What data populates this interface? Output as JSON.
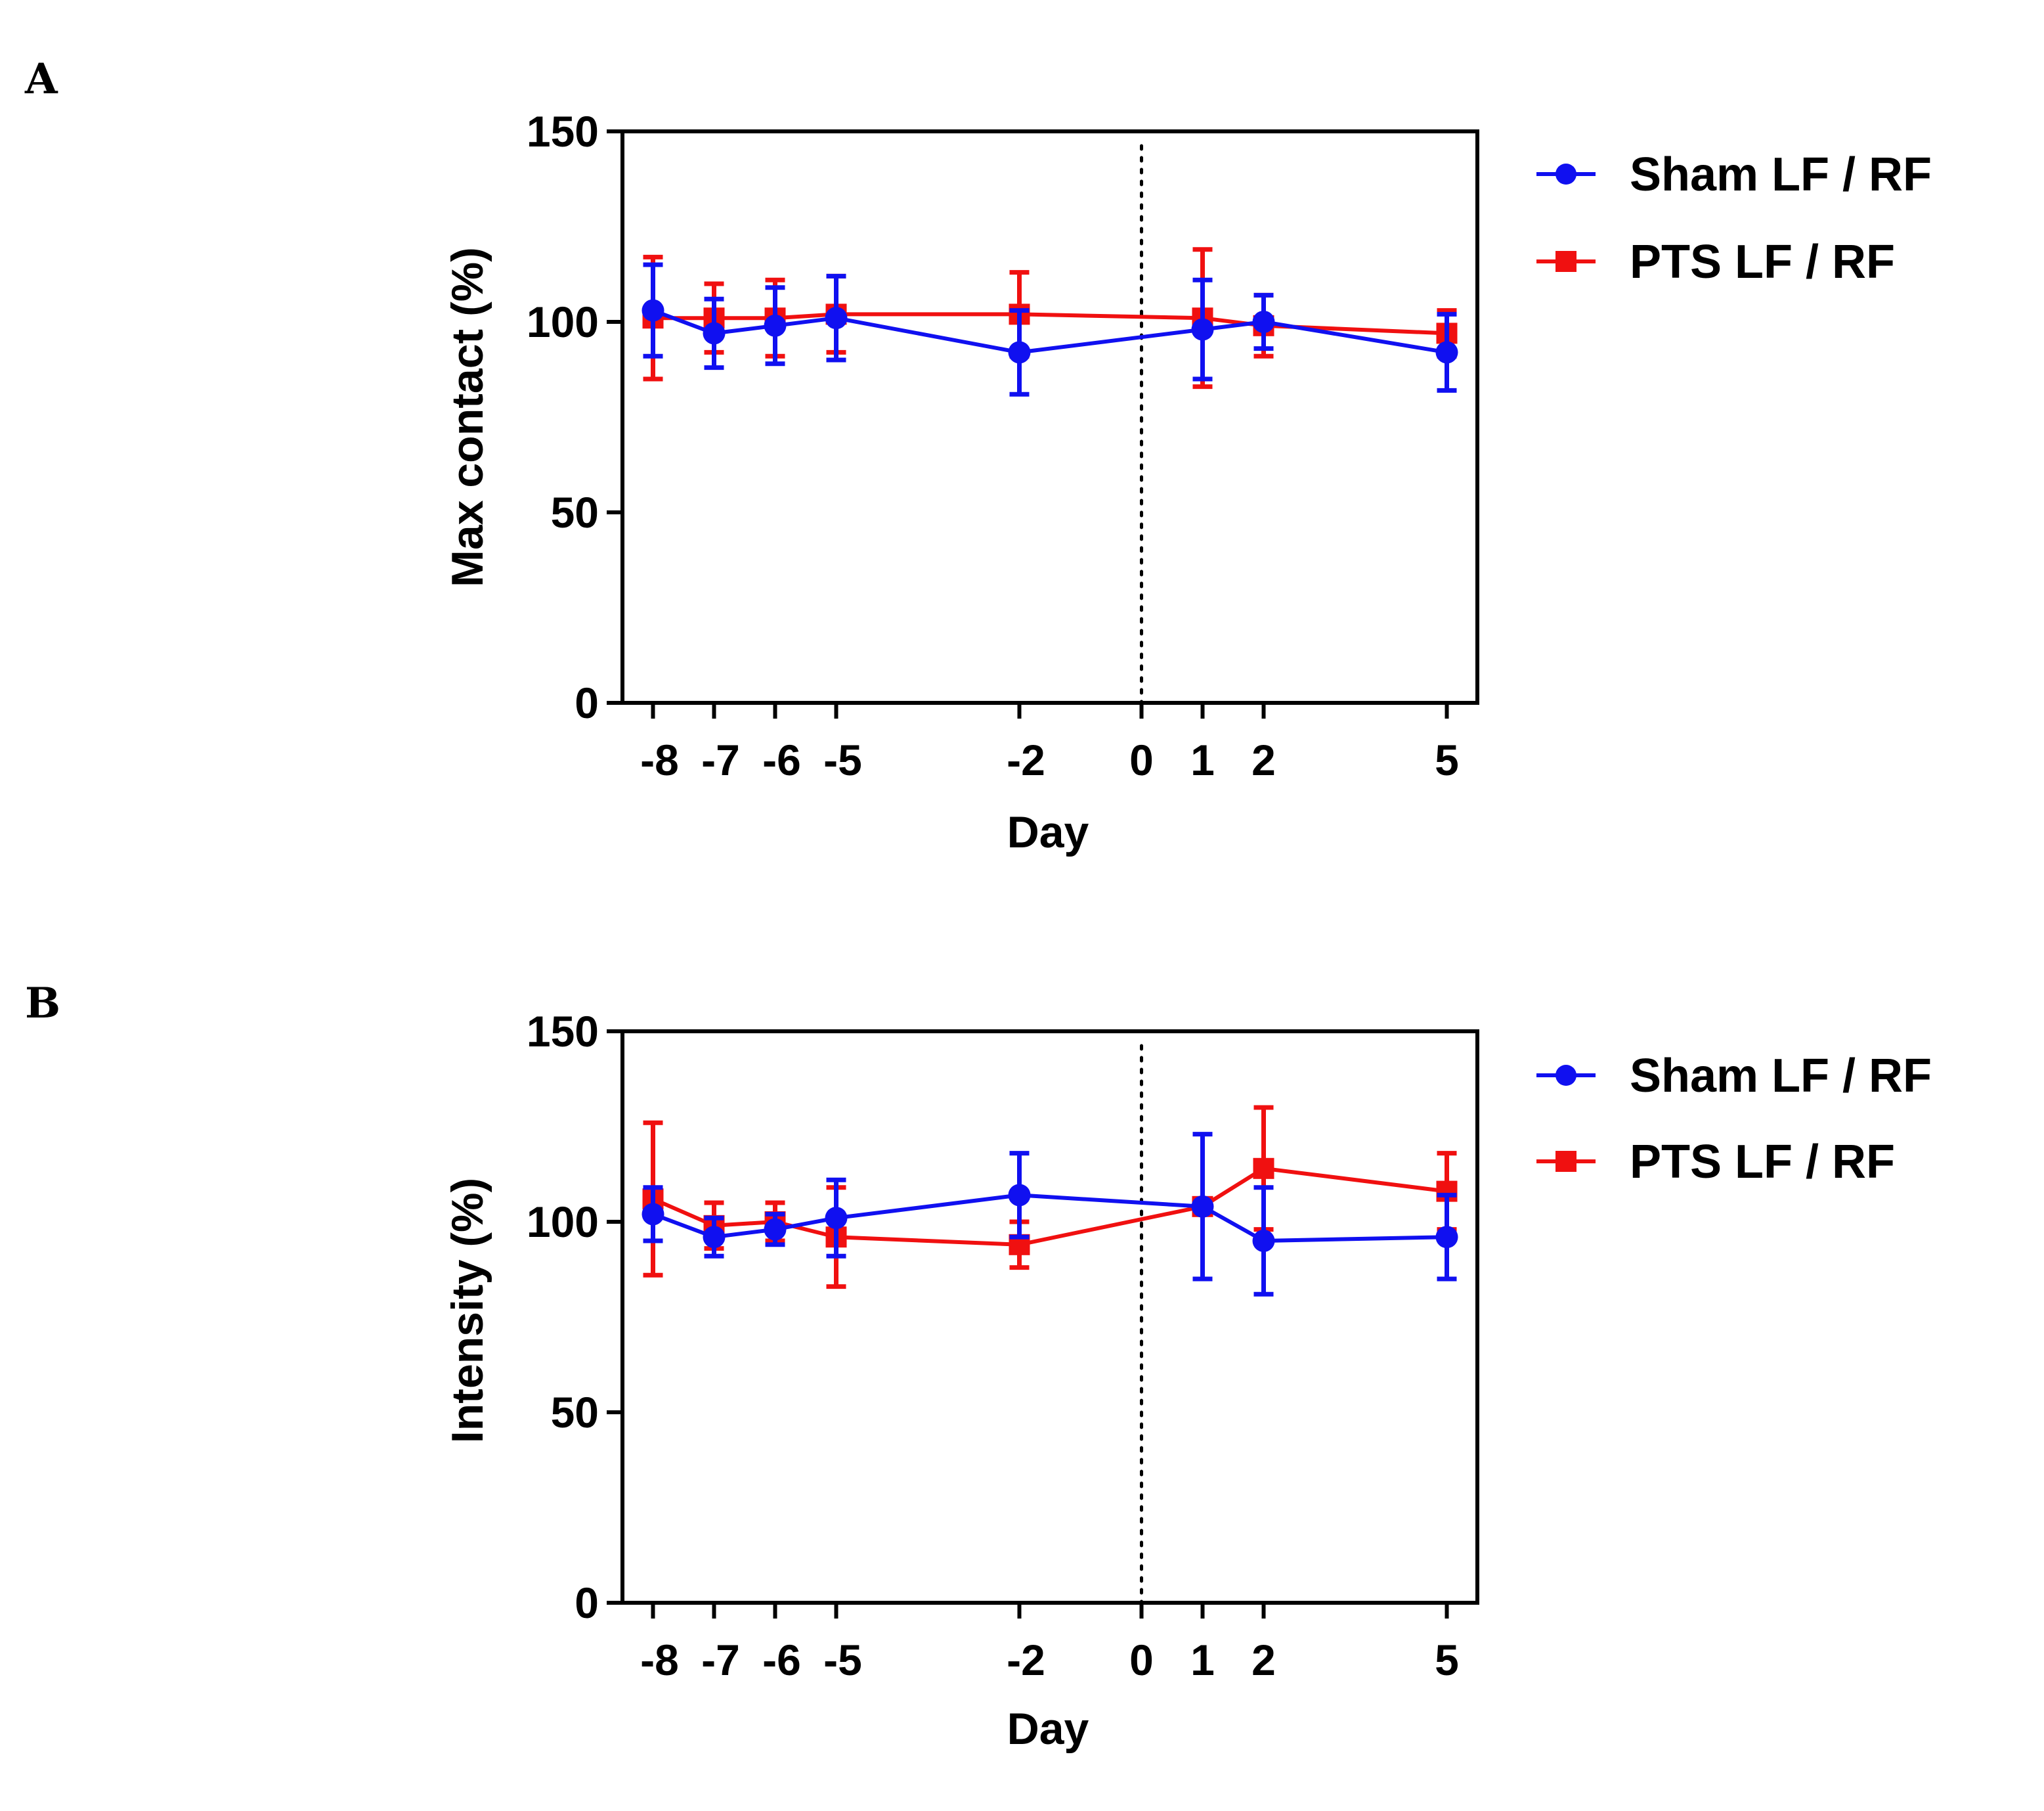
{
  "colors": {
    "sham": "#1010f0",
    "pts": "#f01010",
    "axis": "#000000",
    "background": "#ffffff"
  },
  "chart_data": [
    {
      "panel": "A",
      "type": "line",
      "title": "",
      "xlabel": "Day",
      "ylabel": "Max contact (%)",
      "ylim": [
        0,
        150
      ],
      "xlim": [
        -8.5,
        5.5
      ],
      "yticks": [
        0,
        50,
        100,
        150
      ],
      "x": [
        -8,
        -7,
        -6,
        -5,
        -2,
        0,
        1,
        2,
        5
      ],
      "x_tick_labels": [
        "-8",
        "-7",
        "-6",
        "-5",
        "-2",
        "0",
        "1",
        "2",
        "5"
      ],
      "vertical_reference_line": 0,
      "grid": false,
      "legend_position": "right",
      "series": [
        {
          "name": "Sham LF / RF",
          "color": "#1010f0",
          "marker": "circle",
          "x": [
            -8,
            -7,
            -6,
            -5,
            -2,
            1,
            2,
            5
          ],
          "values": [
            103,
            97,
            99,
            101,
            92,
            98,
            100,
            92
          ],
          "errors": [
            12,
            9,
            10,
            11,
            11,
            13,
            7,
            10
          ]
        },
        {
          "name": "PTS LF / RF",
          "color": "#f01010",
          "marker": "square",
          "x": [
            -8,
            -7,
            -6,
            -5,
            -2,
            1,
            2,
            5
          ],
          "values": [
            101,
            101,
            101,
            102,
            102,
            101,
            99,
            97
          ],
          "errors": [
            16,
            9,
            10,
            10,
            11,
            18,
            8,
            6
          ]
        }
      ]
    },
    {
      "panel": "B",
      "type": "line",
      "title": "",
      "xlabel": "Day",
      "ylabel": "Intensity (%)",
      "ylim": [
        0,
        150
      ],
      "xlim": [
        -8.5,
        5.5
      ],
      "yticks": [
        0,
        50,
        100,
        150
      ],
      "x": [
        -8,
        -7,
        -6,
        -5,
        -2,
        0,
        1,
        2,
        5
      ],
      "x_tick_labels": [
        "-8",
        "-7",
        "-6",
        "-5",
        "-2",
        "0",
        "1",
        "2",
        "5"
      ],
      "vertical_reference_line": 0,
      "grid": false,
      "legend_position": "right",
      "series": [
        {
          "name": "Sham LF / RF",
          "color": "#1010f0",
          "marker": "circle",
          "x": [
            -8,
            -7,
            -6,
            -5,
            -2,
            1,
            2,
            5
          ],
          "values": [
            102,
            96,
            98,
            101,
            107,
            104,
            95,
            96
          ],
          "errors": [
            7,
            5,
            4,
            10,
            11,
            19,
            14,
            11
          ]
        },
        {
          "name": "PTS LF / RF",
          "color": "#f01010",
          "marker": "square",
          "x": [
            -8,
            -7,
            -6,
            -5,
            -2,
            1,
            2,
            5
          ],
          "values": [
            106,
            99,
            100,
            96,
            94,
            104,
            114,
            108
          ],
          "errors": [
            20,
            6,
            5,
            13,
            6,
            0,
            16,
            10
          ]
        }
      ]
    }
  ]
}
